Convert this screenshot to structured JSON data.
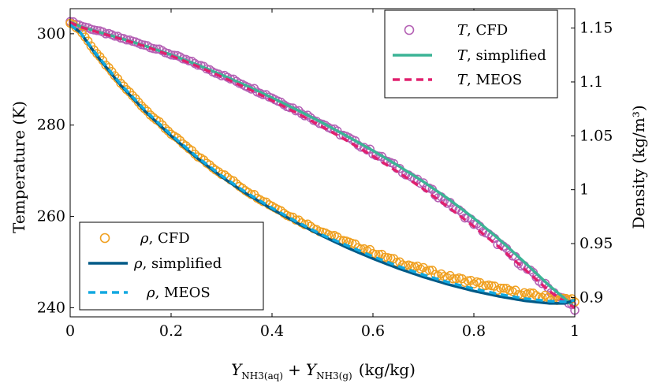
{
  "colors": {
    "t_cfd": "#b460b4",
    "t_simplified": "#3cb496",
    "t_meos": "#e0206e",
    "rho_cfd": "#f0a020",
    "rho_simplified": "#005a87",
    "rho_meos": "#12a8e0"
  },
  "chart_data": {
    "type": "line",
    "xlabel_main": "Y",
    "xlabel_sub1": "NH3(aq)",
    "xlabel_plus": "+",
    "xlabel_sub2": "NH3(g)",
    "xlabel_unit": "(kg/kg)",
    "ylabel_left": "Temperature (K)",
    "ylabel_right": "Density (kg/m³)",
    "xlim": [
      0,
      1
    ],
    "ylim_left": [
      238,
      305.5
    ],
    "ylim_right": [
      0.882,
      1.168
    ],
    "x_ticks": [
      "0",
      "0.2",
      "0.4",
      "0.6",
      "0.8",
      "1"
    ],
    "x_tick_values": [
      0,
      0.2,
      0.4,
      0.6,
      0.8,
      1
    ],
    "y_left_ticks": [
      "240",
      "260",
      "280",
      "300"
    ],
    "y_left_tick_values": [
      240,
      260,
      280,
      300
    ],
    "y_right_ticks": [
      "0.9",
      "0.95",
      "1",
      "1.05",
      "1.1",
      "1.15"
    ],
    "y_right_tick_values": [
      0.9,
      0.95,
      1.0,
      1.05,
      1.1,
      1.15
    ],
    "legend_temperature": [
      {
        "symbol": "T",
        "label": ", CFD"
      },
      {
        "symbol": "T",
        "label": ", simplified"
      },
      {
        "symbol": "T",
        "label": ", MEOS"
      }
    ],
    "legend_density": [
      {
        "symbol": "ρ",
        "label": ", CFD"
      },
      {
        "symbol": "ρ",
        "label": ", simplified"
      },
      {
        "symbol": "ρ",
        "label": ", MEOS"
      }
    ],
    "series": [
      {
        "name": "T, CFD",
        "axis": "left",
        "style": "markers",
        "x": [
          0,
          0.02,
          0.05,
          0.1,
          0.15,
          0.2,
          0.25,
          0.3,
          0.35,
          0.4,
          0.45,
          0.5,
          0.55,
          0.6,
          0.65,
          0.7,
          0.75,
          0.8,
          0.85,
          0.9,
          0.95,
          0.98,
          1.0
        ],
        "y": [
          302.8,
          301.8,
          300.8,
          299.1,
          297.5,
          295.5,
          293.4,
          291.0,
          288.6,
          286.0,
          283.2,
          280.3,
          277.2,
          274.0,
          270.6,
          266.9,
          262.9,
          258.6,
          254.0,
          249.0,
          244.0,
          241.6,
          240.0
        ]
      },
      {
        "name": "T, simplified",
        "axis": "left",
        "style": "solid",
        "x": [
          0,
          0.02,
          0.05,
          0.1,
          0.15,
          0.2,
          0.25,
          0.3,
          0.35,
          0.4,
          0.45,
          0.5,
          0.55,
          0.6,
          0.65,
          0.7,
          0.75,
          0.8,
          0.85,
          0.9,
          0.95,
          0.98,
          1.0
        ],
        "y": [
          302.6,
          301.6,
          300.6,
          299.0,
          297.3,
          295.4,
          293.3,
          291.0,
          288.6,
          286.0,
          283.3,
          280.5,
          277.5,
          274.4,
          271.1,
          267.6,
          263.8,
          259.6,
          255.0,
          250.0,
          244.8,
          242.0,
          240.0
        ]
      },
      {
        "name": "T, MEOS",
        "axis": "left",
        "style": "dashed",
        "x": [
          0,
          0.02,
          0.05,
          0.1,
          0.15,
          0.2,
          0.25,
          0.3,
          0.35,
          0.4,
          0.45,
          0.5,
          0.55,
          0.6,
          0.65,
          0.7,
          0.75,
          0.8,
          0.85,
          0.9,
          0.95,
          0.98,
          1.0
        ],
        "y": [
          302.5,
          301.5,
          300.5,
          298.9,
          297.2,
          295.2,
          293.0,
          290.6,
          288.1,
          285.4,
          282.6,
          279.6,
          276.5,
          273.2,
          269.7,
          266.0,
          262.0,
          257.8,
          253.3,
          248.5,
          243.6,
          241.3,
          240.0
        ]
      },
      {
        "name": "ρ, CFD",
        "axis": "right",
        "style": "markers",
        "x": [
          0,
          0.02,
          0.05,
          0.1,
          0.15,
          0.2,
          0.25,
          0.3,
          0.35,
          0.4,
          0.45,
          0.5,
          0.55,
          0.6,
          0.65,
          0.7,
          0.75,
          0.8,
          0.85,
          0.9,
          0.95,
          0.98,
          1.0
        ],
        "y": [
          1.155,
          1.148,
          1.128,
          1.099,
          1.074,
          1.052,
          1.032,
          1.015,
          0.999,
          0.985,
          0.972,
          0.961,
          0.951,
          0.942,
          0.933,
          0.926,
          0.919,
          0.914,
          0.908,
          0.9035,
          0.8995,
          0.898,
          0.898
        ]
      },
      {
        "name": "ρ, simplified",
        "axis": "right",
        "style": "solid",
        "x": [
          0,
          0.02,
          0.05,
          0.1,
          0.15,
          0.2,
          0.25,
          0.3,
          0.35,
          0.4,
          0.45,
          0.5,
          0.55,
          0.6,
          0.65,
          0.7,
          0.75,
          0.8,
          0.85,
          0.9,
          0.95,
          0.98,
          1.0
        ],
        "y": [
          1.153,
          1.146,
          1.126,
          1.097,
          1.072,
          1.05,
          1.03,
          1.012,
          0.996,
          0.982,
          0.969,
          0.957,
          0.946,
          0.936,
          0.927,
          0.919,
          0.912,
          0.906,
          0.901,
          0.897,
          0.8945,
          0.8945,
          0.8975
        ]
      },
      {
        "name": "ρ, MEOS",
        "axis": "right",
        "style": "dashed",
        "x": [
          0,
          0.02,
          0.05,
          0.1,
          0.15,
          0.2,
          0.25,
          0.3,
          0.35,
          0.4,
          0.45,
          0.5,
          0.55,
          0.6,
          0.65,
          0.7,
          0.75,
          0.8,
          0.85,
          0.9,
          0.95,
          0.98,
          1.0
        ],
        "y": [
          1.153,
          1.146,
          1.127,
          1.098,
          1.073,
          1.051,
          1.031,
          1.013,
          0.997,
          0.983,
          0.97,
          0.958,
          0.948,
          0.938,
          0.929,
          0.921,
          0.914,
          0.908,
          0.903,
          0.899,
          0.8965,
          0.896,
          0.8975
        ]
      }
    ]
  }
}
